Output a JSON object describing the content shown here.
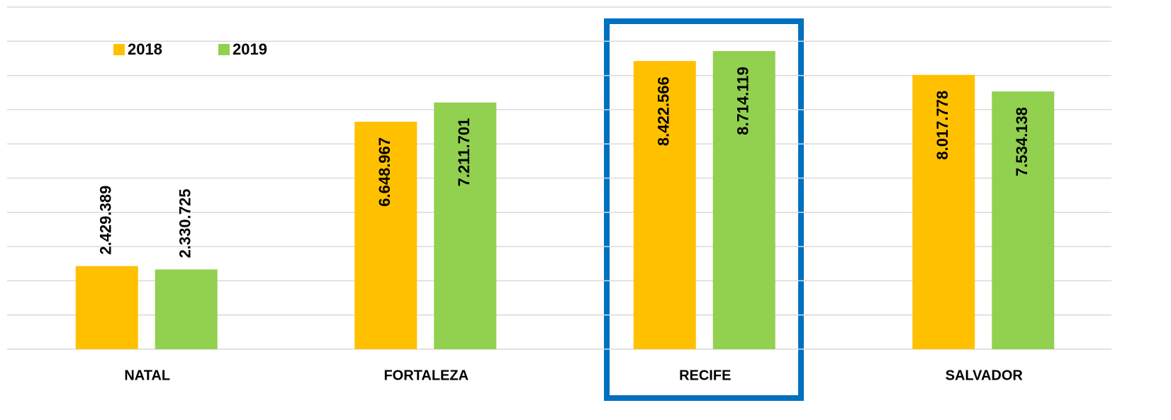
{
  "chart_data": {
    "type": "bar",
    "categories": [
      "NATAL",
      "FORTALEZA",
      "RECIFE",
      "SALVADOR"
    ],
    "series": [
      {
        "name": "2018",
        "color": "#ffc000",
        "values": [
          2429389,
          6648967,
          8422566,
          8017778
        ],
        "value_labels": [
          "2.429.389",
          "6.648.967",
          "8.422.566",
          "8.017.778"
        ]
      },
      {
        "name": "2019",
        "color": "#92d050",
        "values": [
          2330725,
          7211701,
          8714119,
          7534138
        ],
        "value_labels": [
          "2.330.725",
          "7.211.701",
          "8.714.119",
          "7.534.138"
        ]
      }
    ],
    "ylim": [
      0,
      10000000
    ],
    "yticks": [
      0,
      1000000,
      2000000,
      3000000,
      4000000,
      5000000,
      6000000,
      7000000,
      8000000,
      9000000,
      10000000
    ],
    "grid": true,
    "legend": "top-left"
  }
}
